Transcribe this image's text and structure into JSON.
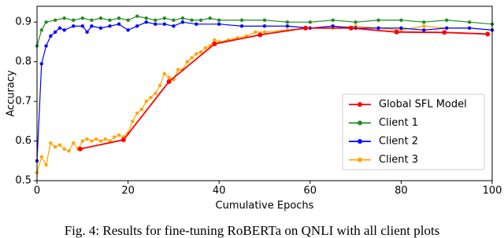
{
  "chart_data": {
    "type": "line",
    "x_label": "Cumulative Epochs",
    "y_label": "Accuracy",
    "xlim": [
      0,
      100
    ],
    "xticks": [
      0,
      20,
      40,
      60,
      80,
      100
    ],
    "ylim": [
      0.5,
      0.94
    ],
    "yticks": [
      0.5,
      0.6,
      0.7,
      0.8,
      0.9
    ],
    "legend": "lower right",
    "series": [
      {
        "name": "Global SFL Model",
        "color": "#ff0000",
        "x": [
          9.5,
          19,
          29,
          39,
          49,
          59,
          69,
          79,
          89.5,
          99
        ],
        "values": [
          0.58,
          0.603,
          0.75,
          0.845,
          0.868,
          0.885,
          0.885,
          0.875,
          0.874,
          0.87
        ]
      },
      {
        "name": "Client 1",
        "color": "#228b22",
        "x": [
          0,
          1,
          2,
          4,
          6,
          8,
          10,
          12,
          14,
          16,
          18,
          20,
          22,
          24,
          26,
          28,
          30,
          32,
          34,
          36,
          38,
          40,
          45,
          50,
          55,
          60,
          65,
          70,
          75,
          80,
          85,
          90,
          95,
          100
        ],
        "values": [
          0.84,
          0.88,
          0.9,
          0.905,
          0.91,
          0.905,
          0.91,
          0.905,
          0.91,
          0.905,
          0.91,
          0.905,
          0.915,
          0.91,
          0.905,
          0.91,
          0.905,
          0.91,
          0.905,
          0.905,
          0.91,
          0.905,
          0.905,
          0.905,
          0.9,
          0.9,
          0.905,
          0.9,
          0.905,
          0.905,
          0.9,
          0.905,
          0.9,
          0.895
        ]
      },
      {
        "name": "Client 2",
        "color": "#0000ff",
        "x": [
          0,
          1,
          2,
          3,
          4,
          5,
          6,
          8,
          10,
          11,
          12,
          14,
          16,
          18,
          20,
          22,
          24,
          26,
          28,
          30,
          32,
          35,
          40,
          45,
          50,
          55,
          60,
          65,
          70,
          75,
          80,
          85,
          90,
          95,
          100
        ],
        "values": [
          0.55,
          0.795,
          0.84,
          0.865,
          0.875,
          0.885,
          0.88,
          0.89,
          0.89,
          0.875,
          0.89,
          0.885,
          0.89,
          0.895,
          0.88,
          0.89,
          0.9,
          0.895,
          0.895,
          0.89,
          0.9,
          0.895,
          0.895,
          0.89,
          0.89,
          0.89,
          0.885,
          0.89,
          0.885,
          0.885,
          0.885,
          0.88,
          0.885,
          0.885,
          0.88
        ]
      },
      {
        "name": "Client 3",
        "color": "#ffa500",
        "x": [
          0,
          1,
          2,
          3,
          4,
          5,
          6,
          7,
          8,
          9,
          10,
          11,
          12,
          13,
          14,
          15,
          16,
          17,
          18,
          19,
          20,
          21,
          22,
          23,
          24,
          25,
          26,
          27,
          28,
          29,
          30,
          31,
          32,
          33,
          34,
          35,
          36,
          37,
          38,
          39,
          40,
          42,
          44,
          46,
          48,
          50,
          55,
          60,
          65,
          70,
          75,
          80,
          85,
          90,
          95,
          100
        ],
        "values": [
          0.52,
          0.56,
          0.54,
          0.595,
          0.585,
          0.59,
          0.58,
          0.575,
          0.595,
          0.58,
          0.6,
          0.605,
          0.6,
          0.605,
          0.6,
          0.605,
          0.6,
          0.61,
          0.615,
          0.61,
          0.62,
          0.65,
          0.67,
          0.68,
          0.7,
          0.71,
          0.72,
          0.74,
          0.77,
          0.76,
          0.755,
          0.78,
          0.78,
          0.8,
          0.81,
          0.82,
          0.825,
          0.835,
          0.84,
          0.855,
          0.85,
          0.855,
          0.86,
          0.865,
          0.875,
          0.875,
          0.88,
          0.885,
          0.885,
          0.89,
          0.885,
          0.88,
          0.89,
          0.885,
          0.885,
          0.88
        ]
      }
    ]
  },
  "caption": "Fig. 4: Results for fine-tuning RoBERTa on QNLI with all client plots"
}
